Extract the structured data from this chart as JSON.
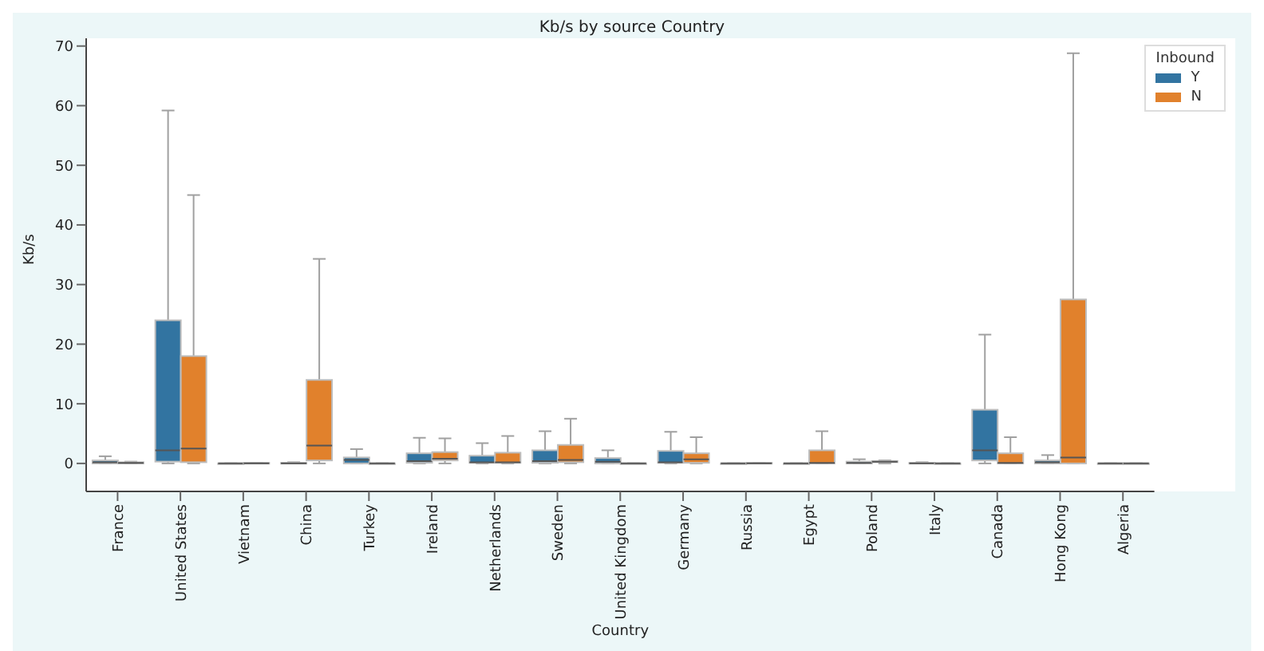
{
  "chart_data": {
    "type": "box",
    "title": "Kb/s by source Country",
    "xlabel": "Country",
    "ylabel": "Kb/s",
    "legend_title": "Inbound",
    "legend": "top right",
    "categories": [
      "France",
      "United States",
      "Vietnam",
      "China",
      "Turkey",
      "Ireland",
      "Netherlands",
      "Sweden",
      "United Kingdom",
      "Germany",
      "Russia",
      "Egypt",
      "Poland",
      "Italy",
      "Canada",
      "Hong Kong",
      "Algeria"
    ],
    "ylim": [
      -4.7,
      71.3
    ],
    "yticks": [
      0,
      10,
      20,
      30,
      40,
      50,
      60,
      70
    ],
    "series": [
      {
        "name": "Y",
        "color": "#3274a1",
        "boxes": [
          {
            "low": 0,
            "q1": 0,
            "median": 0.2,
            "q3": 0.5,
            "high": 1.2
          },
          {
            "low": 0,
            "q1": 0.3,
            "median": 2.2,
            "q3": 24,
            "high": 59.2
          },
          {
            "low": 0,
            "q1": 0,
            "median": 0,
            "q3": 0,
            "high": 0
          },
          {
            "low": 0,
            "q1": 0,
            "median": 0,
            "q3": 0.1,
            "high": 0.2
          },
          {
            "low": 0,
            "q1": 0,
            "median": 0.6,
            "q3": 1,
            "high": 2.4
          },
          {
            "low": 0,
            "q1": 0.1,
            "median": 0.4,
            "q3": 1.7,
            "high": 4.3
          },
          {
            "low": 0,
            "q1": 0.1,
            "median": 0.2,
            "q3": 1.3,
            "high": 3.4
          },
          {
            "low": 0,
            "q1": 0.1,
            "median": 0.4,
            "q3": 2.2,
            "high": 5.4
          },
          {
            "low": 0,
            "q1": 0,
            "median": 0.3,
            "q3": 0.9,
            "high": 2.2
          },
          {
            "low": 0,
            "q1": 0.1,
            "median": 0.2,
            "q3": 2.1,
            "high": 5.3
          },
          {
            "low": 0,
            "q1": 0,
            "median": 0,
            "q3": 0,
            "high": 0
          },
          {
            "low": 0,
            "q1": 0,
            "median": 0,
            "q3": 0,
            "high": 0
          },
          {
            "low": 0,
            "q1": 0,
            "median": 0.1,
            "q3": 0.3,
            "high": 0.7
          },
          {
            "low": 0,
            "q1": 0,
            "median": 0,
            "q3": 0.1,
            "high": 0.2
          },
          {
            "low": 0,
            "q1": 0.5,
            "median": 2.2,
            "q3": 9,
            "high": 21.6
          },
          {
            "low": 0,
            "q1": 0,
            "median": 0.2,
            "q3": 0.5,
            "high": 1.4
          },
          {
            "low": 0,
            "q1": 0,
            "median": 0,
            "q3": 0,
            "high": 0
          }
        ]
      },
      {
        "name": "N",
        "color": "#e1812c",
        "boxes": [
          {
            "low": 0,
            "q1": 0,
            "median": 0.1,
            "q3": 0.2,
            "high": 0.3
          },
          {
            "low": 0,
            "q1": 0.2,
            "median": 2.5,
            "q3": 18,
            "high": 45
          },
          {
            "low": 0,
            "q1": 0,
            "median": 0,
            "q3": 0.1,
            "high": 0.1
          },
          {
            "low": 0,
            "q1": 0.5,
            "median": 3,
            "q3": 14,
            "high": 34.3
          },
          {
            "low": 0,
            "q1": 0,
            "median": 0,
            "q3": 0,
            "high": 0
          },
          {
            "low": 0,
            "q1": 0.5,
            "median": 0.8,
            "q3": 1.9,
            "high": 4.2
          },
          {
            "low": 0,
            "q1": 0.1,
            "median": 0.2,
            "q3": 1.8,
            "high": 4.6
          },
          {
            "low": 0,
            "q1": 0.2,
            "median": 0.6,
            "q3": 3.1,
            "high": 7.5
          },
          {
            "low": 0,
            "q1": 0,
            "median": 0,
            "q3": 0,
            "high": 0
          },
          {
            "low": 0,
            "q1": 0.1,
            "median": 0.7,
            "q3": 1.7,
            "high": 4.4
          },
          {
            "low": 0,
            "q1": 0,
            "median": 0,
            "q3": 0.1,
            "high": 0.1
          },
          {
            "low": 0,
            "q1": 0,
            "median": 0.1,
            "q3": 2.2,
            "high": 5.4
          },
          {
            "low": 0,
            "q1": 0.2,
            "median": 0.3,
            "q3": 0.4,
            "high": 0.5
          },
          {
            "low": 0,
            "q1": 0,
            "median": 0,
            "q3": 0,
            "high": 0
          },
          {
            "low": 0,
            "q1": 0,
            "median": 0.1,
            "q3": 1.7,
            "high": 4.4
          },
          {
            "low": 0,
            "q1": 0,
            "median": 1,
            "q3": 27.5,
            "high": 68.8
          },
          {
            "low": 0,
            "q1": 0,
            "median": 0,
            "q3": 0,
            "high": 0
          }
        ]
      }
    ]
  }
}
